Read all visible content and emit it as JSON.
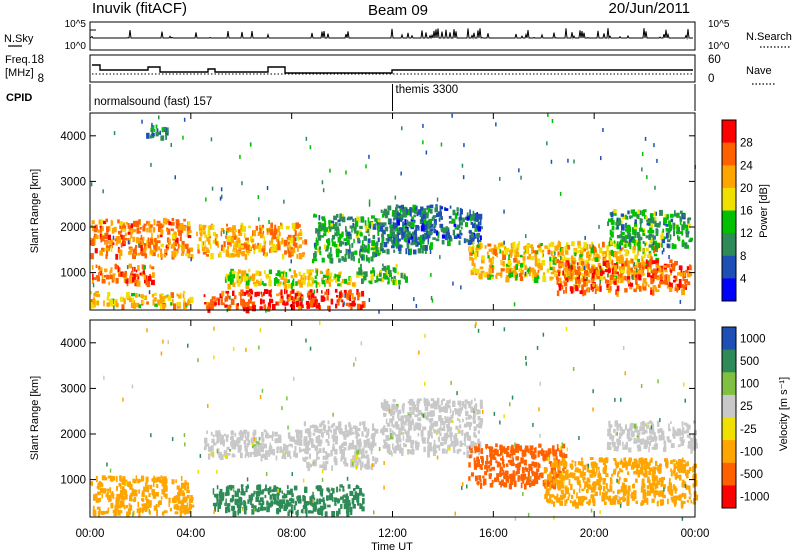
{
  "header": {
    "station": "Inuvik (fitACF)",
    "beam": "Beam 09",
    "date": "20/Jun/2011"
  },
  "summary_panels": {
    "nsky_label": "N.Sky",
    "nsky_ticks": [
      "10^5",
      "10^0"
    ],
    "nsearch_label": "N.Search",
    "nsearch_ticks": [
      "10^5",
      "10^0"
    ],
    "freq_label": "Freq.",
    "freq_unit": "[MHz]",
    "freq_ticks": [
      "18",
      "8"
    ],
    "nave_label": "Nave",
    "nave_ticks": [
      "60",
      "0"
    ],
    "cpid_label": "CPID",
    "cpid_modes": [
      {
        "name": "normalsound (fast) 157",
        "start_hour": 0
      },
      {
        "name": "themis 3300",
        "start_hour": 12
      }
    ]
  },
  "colors": {
    "power_scale": [
      "#0000ff",
      "#1e4fb4",
      "#2e8b57",
      "#00c000",
      "#f0e000",
      "#ffa500",
      "#ff6000",
      "#ff0000"
    ],
    "velocity_scale": [
      "#1e4fb4",
      "#2e8b57",
      "#80c040",
      "#c8c8c8",
      "#f0e000",
      "#ffa500",
      "#ff6000",
      "#ff0000"
    ],
    "ground_scatter": "#c8c8c8"
  },
  "chart_data": [
    {
      "type": "heatmap",
      "title": "Power",
      "xlabel": "Time UT",
      "ylabel": "Slant Range [km]",
      "x_ticks": [
        "00:00",
        "04:00",
        "08:00",
        "12:00",
        "16:00",
        "20:00",
        "00:00"
      ],
      "y_ticks": [
        "1000",
        "2000",
        "3000",
        "4000"
      ],
      "xlim": [
        0,
        24
      ],
      "ylim": [
        180,
        4500
      ],
      "colorbar": {
        "label": "Power [dB]",
        "ticks": [
          "4",
          "8",
          "12",
          "16",
          "20",
          "24",
          "28"
        ],
        "range": [
          0,
          32
        ]
      },
      "regions": [
        {
          "t": [
            0.0,
            4.0
          ],
          "range": [
            300,
            600
          ],
          "value": 20
        },
        {
          "t": [
            0.0,
            2.5
          ],
          "range": [
            800,
            1200
          ],
          "value": 26
        },
        {
          "t": [
            0.0,
            4.0
          ],
          "range": [
            1400,
            2200
          ],
          "value": 24
        },
        {
          "t": [
            2.2,
            3.0
          ],
          "range": [
            3950,
            4250
          ],
          "value": 10
        },
        {
          "t": [
            4.2,
            8.5
          ],
          "range": [
            1400,
            2100
          ],
          "value": 22
        },
        {
          "t": [
            4.5,
            10.8
          ],
          "range": [
            250,
            650
          ],
          "value": 28
        },
        {
          "t": [
            5.3,
            10.5
          ],
          "range": [
            750,
            1100
          ],
          "value": 18
        },
        {
          "t": [
            8.8,
            11.5
          ],
          "range": [
            1300,
            2300
          ],
          "value": 12
        },
        {
          "t": [
            10.5,
            12.5
          ],
          "range": [
            800,
            1200
          ],
          "value": 14
        },
        {
          "t": [
            11.5,
            13.5
          ],
          "range": [
            1500,
            2500
          ],
          "value": 10
        },
        {
          "t": [
            12.0,
            15.5
          ],
          "range": [
            1700,
            2500
          ],
          "value": 8
        },
        {
          "t": [
            15.0,
            22.5
          ],
          "range": [
            900,
            1700
          ],
          "value": 20
        },
        {
          "t": [
            18.5,
            23.8
          ],
          "range": [
            600,
            1300
          ],
          "value": 26
        },
        {
          "t": [
            20.5,
            23.8
          ],
          "range": [
            1600,
            2400
          ],
          "value": 12
        }
      ]
    },
    {
      "type": "heatmap",
      "title": "Velocity",
      "xlabel": "Time UT",
      "ylabel": "Slant Range [km]",
      "x_ticks": [
        "00:00",
        "04:00",
        "08:00",
        "12:00",
        "16:00",
        "20:00",
        "00:00"
      ],
      "y_ticks": [
        "1000",
        "2000",
        "3000",
        "4000"
      ],
      "xlim": [
        0,
        24
      ],
      "ylim": [
        180,
        4500
      ],
      "colorbar": {
        "label": "Velocity [m s⁻¹]",
        "ticks": [
          "1000",
          "500",
          "100",
          "25",
          "-25",
          "-100",
          "-500",
          "-1000"
        ],
        "range": [
          -1000,
          1000
        ]
      },
      "regions": [
        {
          "t": [
            0.0,
            4.0
          ],
          "range": [
            300,
            1100
          ],
          "value": -300
        },
        {
          "t": [
            4.5,
            8.3
          ],
          "range": [
            1500,
            2100
          ],
          "value": 0
        },
        {
          "t": [
            4.8,
            10.8
          ],
          "range": [
            300,
            900
          ],
          "value": 300
        },
        {
          "t": [
            8.3,
            11.3
          ],
          "range": [
            1300,
            2300
          ],
          "value": 0
        },
        {
          "t": [
            11.5,
            15.5
          ],
          "range": [
            1600,
            2800
          ],
          "value": 0
        },
        {
          "t": [
            15.0,
            18.8
          ],
          "range": [
            900,
            1800
          ],
          "value": -600
        },
        {
          "t": [
            18.0,
            24.0
          ],
          "range": [
            500,
            1500
          ],
          "value": -150
        },
        {
          "t": [
            20.5,
            24.0
          ],
          "range": [
            1700,
            2300
          ],
          "value": 0
        }
      ]
    }
  ]
}
